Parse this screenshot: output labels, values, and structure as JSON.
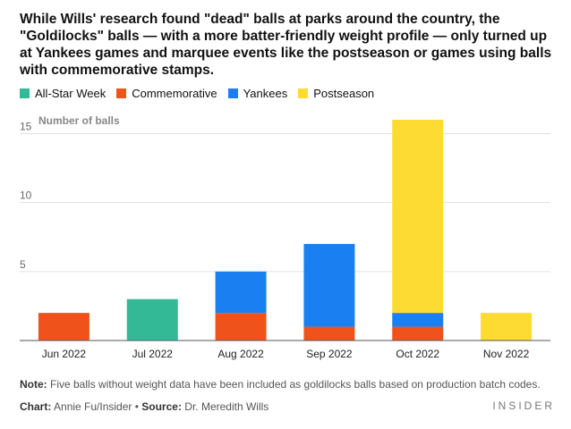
{
  "title": "While Wills' research found \"dead\" balls at parks around the country, the \"Goldilocks\" balls — with a more batter-friendly weight profile — only turned up at Yankees games and marquee events like the postseason or games using balls with commemorative stamps.",
  "note_label": "Note:",
  "note_text": " Five balls without weight data have been included as goldilocks balls based on production batch codes.",
  "credit": {
    "chart_label": "Chart:",
    "chart_value": " Annie Fu/Insider • ",
    "source_label": "Source:",
    "source_value": " Dr. Meredith Wills"
  },
  "brand": "INSIDER",
  "chart_data": {
    "type": "bar",
    "stacked": true,
    "title": "",
    "ylabel": "Number of balls",
    "xlabel": "",
    "ylim": [
      0,
      16
    ],
    "yticks": [
      5,
      10,
      15
    ],
    "categories": [
      "Jun 2022",
      "Jul 2022",
      "Aug 2022",
      "Sep 2022",
      "Oct 2022",
      "Nov 2022"
    ],
    "series": [
      {
        "name": "Commemorative",
        "color": "#f0521c",
        "values": [
          2,
          0,
          2,
          1,
          1,
          0
        ]
      },
      {
        "name": "All-Star Week",
        "color": "#33b996",
        "values": [
          0,
          3,
          0,
          0,
          0,
          0
        ]
      },
      {
        "name": "Yankees",
        "color": "#1a80f1",
        "values": [
          0,
          0,
          3,
          6,
          1,
          0
        ]
      },
      {
        "name": "Postseason",
        "color": "#fddb33",
        "values": [
          0,
          0,
          0,
          0,
          14,
          2
        ]
      }
    ],
    "legend": [
      {
        "name": "All-Star Week",
        "color": "#33b996"
      },
      {
        "name": "Commemorative",
        "color": "#f0521c"
      },
      {
        "name": "Yankees",
        "color": "#1a80f1"
      },
      {
        "name": "Postseason",
        "color": "#fddb33"
      }
    ]
  }
}
